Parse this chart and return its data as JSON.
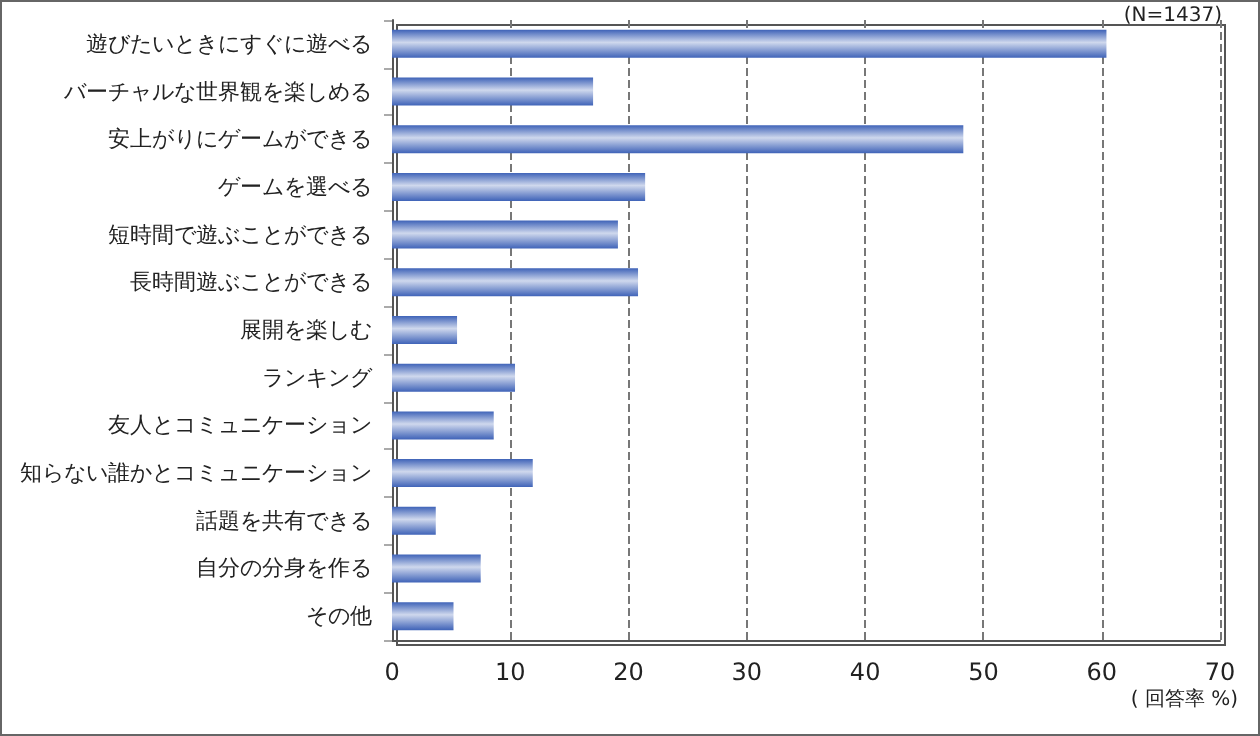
{
  "chart_data": {
    "type": "bar",
    "orientation": "horizontal",
    "categories": [
      "遊びたいときにすぐに遊べる",
      "バーチャルな世界観を楽しめる",
      "安上がりにゲームができる",
      "ゲームを選べる",
      "短時間で遊ぶことができる",
      "長時間遊ぶことができる",
      "展開を楽しむ",
      "ランキング",
      "友人とコミュニケーション",
      "知らない誰かとコミュニケーション",
      "話題を共有できる",
      "自分の分身を作る",
      "その他"
    ],
    "values": [
      60.4,
      17.0,
      48.3,
      21.4,
      19.1,
      20.8,
      5.5,
      10.4,
      8.6,
      11.9,
      3.7,
      7.5,
      5.2
    ],
    "color": "#3f63b8",
    "xlim": [
      0,
      70
    ],
    "xticks": [
      0,
      10,
      20,
      30,
      40,
      50,
      60,
      70
    ],
    "xlabel": "( 回答率 %)",
    "annotations": [
      "(N=1437)"
    ],
    "grid": "x"
  }
}
